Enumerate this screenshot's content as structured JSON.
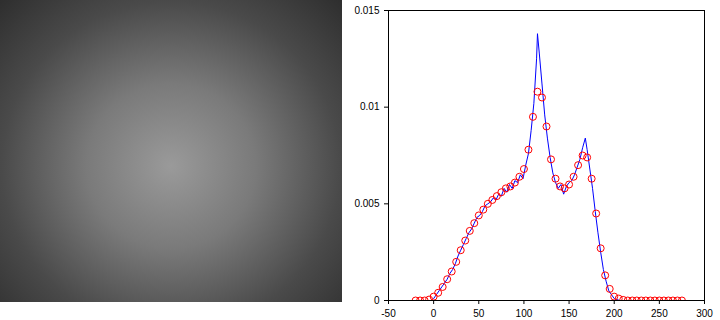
{
  "chart_data": {
    "type": "line",
    "xlim": [
      -50,
      300
    ],
    "xticks": [
      -50,
      0,
      50,
      100,
      150,
      200,
      250,
      300
    ],
    "ylim": [
      0,
      0.015
    ],
    "yticks": [
      0,
      0.005,
      0.01,
      0.015
    ],
    "grid": false,
    "series": [
      {
        "type": "line",
        "color": "#0000ff",
        "x": [
          0,
          3,
          6,
          9,
          12,
          15,
          18,
          21,
          24,
          27,
          30,
          33,
          36,
          39,
          42,
          45,
          48,
          51,
          54,
          57,
          60,
          63,
          66,
          69,
          72,
          75,
          78,
          81,
          84,
          87,
          90,
          93,
          96,
          99,
          102,
          105,
          108,
          111,
          114,
          115,
          117,
          120,
          123,
          126,
          129,
          132,
          135,
          138,
          141,
          144,
          147,
          150,
          153,
          156,
          159,
          162,
          165,
          168,
          170,
          173,
          176,
          179,
          182,
          185,
          188,
          191,
          194,
          197,
          200,
          203,
          206,
          209
        ],
        "values": [
          0.0001,
          0.0003,
          0.0005,
          0.0007,
          0.0009,
          0.0011,
          0.0014,
          0.0016,
          0.0019,
          0.0023,
          0.0026,
          0.0029,
          0.0032,
          0.0035,
          0.0037,
          0.004,
          0.0043,
          0.0044,
          0.0046,
          0.0049,
          0.005,
          0.0051,
          0.0053,
          0.0052,
          0.0055,
          0.0054,
          0.0058,
          0.0056,
          0.006,
          0.0058,
          0.0062,
          0.0061,
          0.0065,
          0.0063,
          0.007,
          0.0076,
          0.0088,
          0.0102,
          0.0125,
          0.0138,
          0.0128,
          0.0112,
          0.0096,
          0.0084,
          0.0074,
          0.0066,
          0.0061,
          0.0058,
          0.006,
          0.0055,
          0.0059,
          0.0061,
          0.0062,
          0.0065,
          0.0069,
          0.0073,
          0.0079,
          0.0084,
          0.0078,
          0.0068,
          0.0058,
          0.0046,
          0.0035,
          0.0025,
          0.0016,
          0.001,
          0.0005,
          0.0003,
          0.0001,
          5e-05,
          0,
          0
        ]
      },
      {
        "type": "scatter",
        "marker": "circle",
        "color": "#ff0000",
        "x": [
          -20,
          -15,
          -10,
          -5,
          0,
          5,
          10,
          15,
          20,
          25,
          30,
          35,
          40,
          45,
          50,
          55,
          60,
          65,
          70,
          75,
          80,
          85,
          90,
          95,
          100,
          105,
          110,
          115,
          120,
          125,
          130,
          135,
          140,
          145,
          150,
          155,
          160,
          165,
          170,
          175,
          180,
          185,
          190,
          195,
          200,
          205,
          210,
          215,
          220,
          225,
          230,
          235,
          240,
          245,
          250,
          255,
          260,
          265,
          270,
          275
        ],
        "values": [
          0,
          0,
          0,
          5e-05,
          0.0002,
          0.0004,
          0.0007,
          0.0011,
          0.0015,
          0.002,
          0.0026,
          0.0031,
          0.0036,
          0.004,
          0.0044,
          0.0047,
          0.005,
          0.0052,
          0.0054,
          0.0056,
          0.0058,
          0.0059,
          0.0061,
          0.0064,
          0.0068,
          0.0078,
          0.0095,
          0.0108,
          0.0105,
          0.009,
          0.0073,
          0.0063,
          0.0059,
          0.0058,
          0.006,
          0.0064,
          0.007,
          0.0075,
          0.0074,
          0.0063,
          0.0045,
          0.0027,
          0.0013,
          0.0006,
          0.0002,
          0.0001,
          3e-05,
          0,
          0,
          0,
          0,
          0,
          0,
          0,
          0,
          0,
          0,
          0,
          0,
          0
        ]
      }
    ]
  }
}
